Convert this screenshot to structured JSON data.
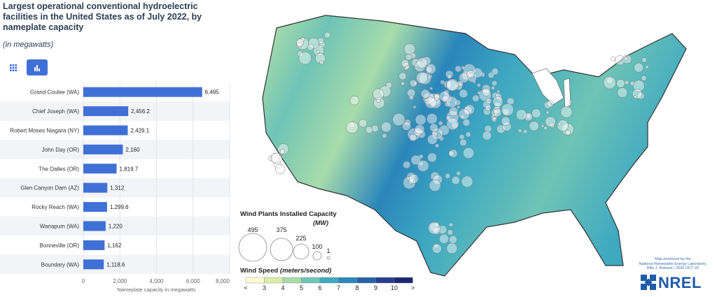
{
  "chart_data": {
    "type": "bar",
    "orientation": "horizontal",
    "title": "Largest operational conventional hydroelectric facilities in the United States as of July 2022, by nameplate capacity",
    "subtitle": "(in megawatts)",
    "categories": [
      "Grand Coulee (WA)",
      "Chief Joseph (WA)",
      "Robert Moses Niagara (NY)",
      "John Day (OR)",
      "The Dalles (OR)",
      "Glen Canyon Dam (AZ)",
      "Rocky Reach (WA)",
      "Wanapum (WA)",
      "Bonneville (OR)",
      "Boundary (WA)"
    ],
    "values": [
      6495,
      2456.2,
      2429.1,
      2160,
      1819.7,
      1312,
      1299.6,
      1220,
      1162,
      1118.6
    ],
    "value_labels": [
      "6,495",
      "2,456.2",
      "2,429.1",
      "2,160",
      "1,819.7",
      "1,312",
      "1,299.6",
      "1,220",
      "1,162",
      "1,118.6"
    ],
    "xlabel": "Nameplate capacity in megawatts",
    "ylabel": "",
    "xlim": [
      0,
      8000
    ],
    "ticks": [
      0,
      2000,
      4000,
      6000,
      8000
    ],
    "tick_labels": [
      "0",
      "2,000",
      "4,000",
      "6,000",
      "8,000"
    ],
    "bar_color": "#3f70d6",
    "grid": true
  },
  "controls": {
    "table_icon": "grid-icon",
    "bar_icon": "bar-chart-icon",
    "active_color": "#3f70d6"
  },
  "map": {
    "bubble_legend_title": "Wind Plants Installed Capacity",
    "bubble_legend_unit": "(MW)",
    "bubble_sizes": [
      495,
      375,
      225,
      100,
      1
    ],
    "bubble_labels": [
      "495",
      "375",
      "225",
      "100",
      "1"
    ],
    "speed_legend_title": "Wind Speed",
    "speed_legend_unit": "(meters/second)",
    "speed_labels": [
      "<",
      "3",
      "4",
      "5",
      "6",
      "7",
      "8",
      "9",
      "10",
      ">"
    ],
    "speed_colors": [
      "#fbfbd0",
      "#d9eea8",
      "#a8dcab",
      "#6fc4b6",
      "#3fa9c1",
      "#2a86bb",
      "#2563a6",
      "#233f8d",
      "#1a2773"
    ],
    "credit_lines": [
      "Map produced by the",
      "National Renewable Energy Laboratory.",
      "Billy J. Roberts | 2020 OCT 20"
    ],
    "logo_text": "NREL"
  }
}
